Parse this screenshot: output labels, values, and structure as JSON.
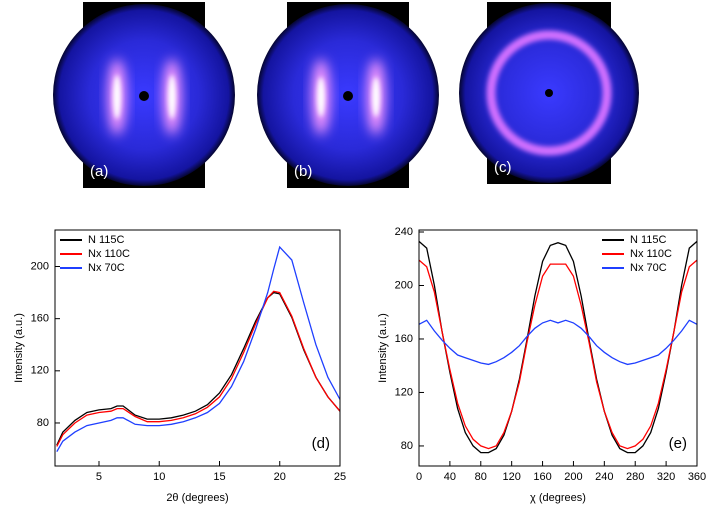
{
  "images": [
    {
      "label": "(a)"
    },
    {
      "label": "(b)"
    },
    {
      "label": "(c)"
    }
  ],
  "chart_data": [
    {
      "type": "line",
      "label": "(d)",
      "xlabel": "2θ (degrees)",
      "ylabel": "Intensity (a.u.)",
      "xlim": [
        1.35,
        25
      ],
      "xticks": [
        5,
        10,
        15,
        20,
        25
      ],
      "ylim": [
        47,
        228
      ],
      "yticks": [
        80,
        120,
        160,
        200
      ],
      "legend": "upper left",
      "x": [
        1.5,
        2,
        3,
        4,
        5,
        6,
        6.5,
        7,
        8,
        9,
        10,
        11,
        12,
        13,
        14,
        15,
        16,
        17,
        18,
        19,
        19.5,
        20,
        21,
        22,
        23,
        24,
        25
      ],
      "series": [
        {
          "name": "N 115C",
          "color": "#000000",
          "values": [
            63,
            73,
            82,
            88,
            90,
            91,
            93,
            93,
            86,
            83,
            83,
            84,
            86,
            89,
            94,
            103,
            117,
            137,
            158,
            176,
            180,
            179,
            161,
            136,
            115,
            100,
            89
          ]
        },
        {
          "name": "Nx 110C",
          "color": "#ff0000",
          "values": [
            62,
            71,
            80,
            86,
            88,
            89,
            91,
            91,
            85,
            81,
            81,
            82,
            84,
            87,
            92,
            100,
            114,
            134,
            156,
            176,
            181,
            180,
            162,
            137,
            115,
            100,
            89
          ]
        },
        {
          "name": "Nx 70C",
          "color": "#1f3fff",
          "values": [
            58,
            66,
            73,
            78,
            80,
            82,
            84,
            84,
            79,
            78,
            78,
            79,
            81,
            84,
            88,
            95,
            108,
            127,
            152,
            180,
            198,
            215,
            205,
            172,
            140,
            115,
            98
          ]
        }
      ]
    },
    {
      "type": "line",
      "label": "(e)",
      "xlabel": "χ (degrees)",
      "ylabel": "Intensity (a.u.)",
      "xlim": [
        0,
        360
      ],
      "xticks": [
        0,
        40,
        80,
        120,
        160,
        200,
        240,
        280,
        320,
        360
      ],
      "ylim": [
        65,
        241.5
      ],
      "yticks": [
        80,
        120,
        160,
        200,
        240
      ],
      "legend": "upper right",
      "x": [
        0,
        10,
        20,
        30,
        40,
        50,
        60,
        70,
        80,
        90,
        100,
        110,
        120,
        130,
        140,
        150,
        160,
        170,
        180,
        190,
        200,
        210,
        220,
        230,
        240,
        250,
        260,
        270,
        280,
        290,
        300,
        310,
        320,
        330,
        340,
        350,
        360
      ],
      "series": [
        {
          "name": "N 115C",
          "color": "#000000",
          "values": [
            233,
            228,
            200,
            165,
            135,
            108,
            90,
            80,
            75,
            75,
            78,
            88,
            106,
            130,
            160,
            192,
            218,
            230,
            232,
            230,
            218,
            192,
            160,
            130,
            106,
            88,
            78,
            75,
            75,
            80,
            90,
            108,
            135,
            165,
            200,
            228,
            233
          ]
        },
        {
          "name": "Nx 110C",
          "color": "#ff0000",
          "values": [
            219,
            214,
            195,
            165,
            137,
            112,
            95,
            85,
            80,
            78,
            80,
            90,
            106,
            128,
            158,
            185,
            207,
            216,
            216,
            216,
            207,
            185,
            158,
            128,
            106,
            90,
            80,
            78,
            80,
            85,
            95,
            112,
            137,
            165,
            195,
            214,
            219
          ]
        },
        {
          "name": "Nx 70C",
          "color": "#1f3fff",
          "values": [
            171,
            174,
            166,
            159,
            153,
            148,
            146,
            144,
            142,
            141,
            143,
            146,
            150,
            155,
            162,
            168,
            172,
            174,
            172,
            174,
            172,
            168,
            162,
            155,
            150,
            146,
            143,
            141,
            142,
            144,
            146,
            148,
            153,
            159,
            166,
            174,
            171
          ]
        }
      ]
    }
  ]
}
